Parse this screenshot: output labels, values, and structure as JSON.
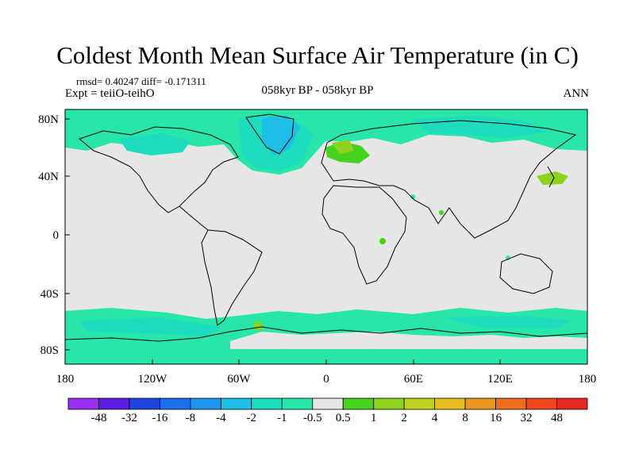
{
  "title": "Coldest Month Mean Surface Air Temperature (in C)",
  "stats": "rmsd= 0.40247 diff= -0.171311",
  "experiment": "Expt = teiiO-teihO",
  "period": "058kyr BP - 058kyr BP",
  "season": "ANN",
  "map": {
    "projection": "cylindrical equidistant",
    "lon_range": [
      -180,
      180
    ],
    "lat_range": [
      -90,
      90
    ],
    "lat_ticks": [
      "80N",
      "40N",
      "0",
      "40S",
      "80S"
    ],
    "lon_ticks": [
      "180",
      "120W",
      "60W",
      "0",
      "60E",
      "120E",
      "180"
    ]
  },
  "colorbar": {
    "labels": [
      "-48",
      "-32",
      "-16",
      "-8",
      "-4",
      "-2",
      "-1",
      "-0.5",
      "0.5",
      "1",
      "2",
      "4",
      "8",
      "16",
      "32",
      "48"
    ],
    "colors": [
      "#9a2ff0",
      "#5a1ee6",
      "#1e46dc",
      "#1e6eec",
      "#1e96f0",
      "#1ebee6",
      "#1edcbe",
      "#28e6aa",
      "#e6e6e6",
      "#46d21e",
      "#8cd21e",
      "#bed21e",
      "#e6be1e",
      "#eb961e",
      "#f06e1e",
      "#f0461e",
      "#e6281e"
    ]
  }
}
